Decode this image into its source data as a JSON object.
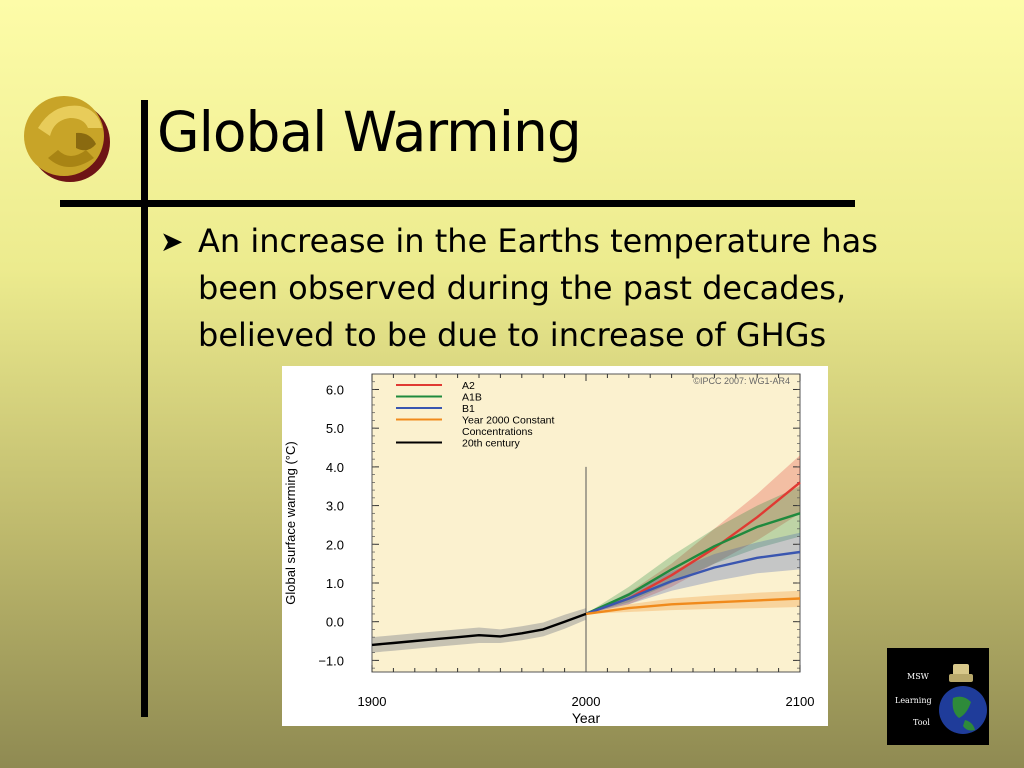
{
  "slide": {
    "title": "Global Warming",
    "bullet": "An increase in the Earths temperature has been observed during the past decades, believed to be due to increase of GHGs"
  },
  "colors": {
    "accent": "#000000",
    "logo_gold": "#c8a428",
    "logo_maroon": "#7a1a1a"
  },
  "icons": {
    "bullet": "arrow-bullet-icon",
    "logo": "pegasus-logo-icon",
    "tool": "msw-learning-tool-icon"
  },
  "msw_tool": {
    "line1": "MSW",
    "line2": "Learning",
    "line3": "Tool"
  },
  "chart_data": {
    "type": "line",
    "credit": "©IPCC 2007: WG1-AR4",
    "xlabel": "Year",
    "ylabel": "Global surface warming (°C)",
    "xlim": [
      1900,
      2100
    ],
    "ylim": [
      -1.3,
      6.4
    ],
    "x_ticks": [
      1900,
      2000,
      2100
    ],
    "x_tick_labels": [
      "1900",
      "2000",
      "2100"
    ],
    "y_ticks": [
      -1,
      0,
      1,
      2,
      3,
      4,
      5,
      6
    ],
    "y_tick_labels": [
      "−1.0",
      "0.0",
      "1.0",
      "2.0",
      "3.0",
      "4.0",
      "5.0",
      "6.0"
    ],
    "marker_year": 2000,
    "legend_position": "top-left",
    "series": [
      {
        "name": "A2",
        "color": "#e03a33",
        "x": [
          2000,
          2020,
          2040,
          2060,
          2080,
          2100
        ],
        "y": [
          0.2,
          0.6,
          1.2,
          1.9,
          2.7,
          3.6
        ],
        "lower": [
          0.2,
          0.45,
          0.9,
          1.5,
          2.1,
          2.8
        ],
        "upper": [
          0.2,
          0.75,
          1.5,
          2.4,
          3.3,
          4.3
        ]
      },
      {
        "name": "A1B",
        "color": "#1f8a3e",
        "x": [
          2000,
          2020,
          2040,
          2060,
          2080,
          2100
        ],
        "y": [
          0.2,
          0.7,
          1.35,
          1.95,
          2.45,
          2.8
        ],
        "lower": [
          0.2,
          0.5,
          1.0,
          1.5,
          1.9,
          2.2
        ],
        "upper": [
          0.2,
          0.9,
          1.7,
          2.4,
          3.0,
          3.5
        ]
      },
      {
        "name": "B1",
        "color": "#3a56b0",
        "x": [
          2000,
          2020,
          2040,
          2060,
          2080,
          2100
        ],
        "y": [
          0.2,
          0.6,
          1.05,
          1.4,
          1.65,
          1.8
        ],
        "lower": [
          0.2,
          0.45,
          0.8,
          1.05,
          1.25,
          1.35
        ],
        "upper": [
          0.2,
          0.75,
          1.3,
          1.75,
          2.05,
          2.3
        ]
      },
      {
        "name": "Year 2000 Constant Concentrations",
        "color": "#f08a1c",
        "x": [
          2000,
          2020,
          2040,
          2060,
          2080,
          2100
        ],
        "y": [
          0.2,
          0.35,
          0.45,
          0.5,
          0.55,
          0.6
        ],
        "lower": [
          0.2,
          0.25,
          0.3,
          0.33,
          0.35,
          0.38
        ],
        "upper": [
          0.2,
          0.45,
          0.6,
          0.68,
          0.75,
          0.8
        ]
      },
      {
        "name": "20th century",
        "color": "#000000",
        "x": [
          1900,
          1910,
          1920,
          1930,
          1940,
          1950,
          1960,
          1970,
          1980,
          1990,
          2000
        ],
        "y": [
          -0.6,
          -0.55,
          -0.5,
          -0.45,
          -0.4,
          -0.35,
          -0.38,
          -0.3,
          -0.2,
          0.0,
          0.2
        ],
        "lower": [
          -0.8,
          -0.75,
          -0.7,
          -0.65,
          -0.6,
          -0.55,
          -0.55,
          -0.48,
          -0.38,
          -0.18,
          0.05
        ],
        "upper": [
          -0.4,
          -0.35,
          -0.3,
          -0.25,
          -0.2,
          -0.15,
          -0.2,
          -0.12,
          -0.02,
          0.18,
          0.35
        ]
      }
    ]
  }
}
